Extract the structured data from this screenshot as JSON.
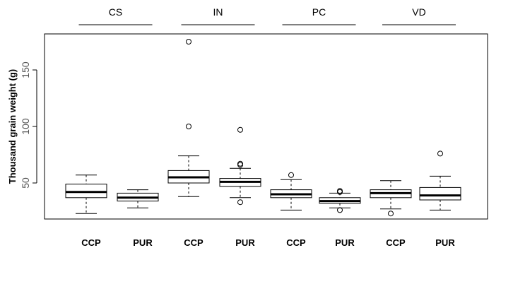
{
  "chart_data": {
    "type": "boxplot",
    "ylabel": "Thousand grain weight (g)",
    "xlabel": "",
    "title": "",
    "ylim": [
      15,
      182
    ],
    "yticks": [
      50,
      100,
      150
    ],
    "groups": [
      "CS",
      "IN",
      "PC",
      "VD"
    ],
    "categories": [
      "CCP",
      "PUR",
      "CCP",
      "PUR",
      "CCP",
      "PUR",
      "CCP",
      "PUR"
    ],
    "boxes": [
      {
        "group": "CS",
        "category": "CCP",
        "whisker_low": 23,
        "q1": 37,
        "median": 42,
        "q3": 49,
        "whisker_high": 57,
        "outliers": []
      },
      {
        "group": "CS",
        "category": "PUR",
        "whisker_low": 28,
        "q1": 34,
        "median": 37,
        "q3": 41,
        "whisker_high": 44,
        "outliers": []
      },
      {
        "group": "IN",
        "category": "CCP",
        "whisker_low": 38,
        "q1": 50,
        "median": 55,
        "q3": 61,
        "whisker_high": 74,
        "outliers": [
          100,
          175
        ]
      },
      {
        "group": "IN",
        "category": "PUR",
        "whisker_low": 37,
        "q1": 47,
        "median": 51,
        "q3": 54,
        "whisker_high": 63,
        "outliers": [
          33,
          66,
          67,
          97
        ]
      },
      {
        "group": "PC",
        "category": "CCP",
        "whisker_low": 26,
        "q1": 37,
        "median": 40,
        "q3": 44,
        "whisker_high": 53,
        "outliers": [
          57
        ]
      },
      {
        "group": "PC",
        "category": "PUR",
        "whisker_low": 28,
        "q1": 32,
        "median": 34,
        "q3": 37,
        "whisker_high": 41,
        "outliers": [
          26,
          42,
          43
        ]
      },
      {
        "group": "VD",
        "category": "CCP",
        "whisker_low": 27,
        "q1": 37,
        "median": 41,
        "q3": 44,
        "whisker_high": 52,
        "outliers": [
          23
        ]
      },
      {
        "group": "VD",
        "category": "PUR",
        "whisker_low": 26,
        "q1": 35,
        "median": 39,
        "q3": 46,
        "whisker_high": 56,
        "outliers": [
          76
        ]
      }
    ],
    "grid": false,
    "legend": "none"
  }
}
